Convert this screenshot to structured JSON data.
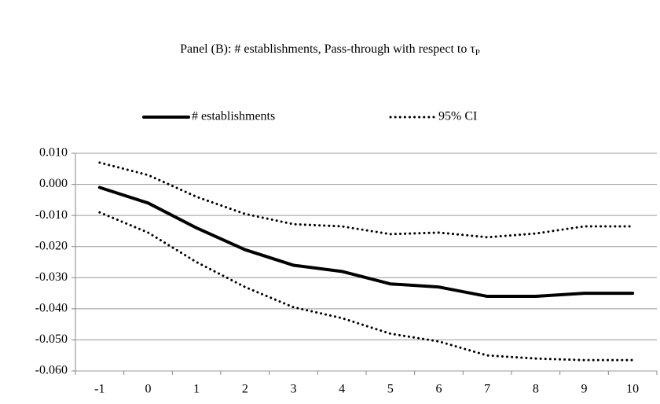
{
  "chart_data": {
    "type": "line",
    "title": "Panel (B): # establishments, Pass-through with respect to τ",
    "title_subscript": "P",
    "categories": [
      "-1",
      "0",
      "1",
      "2",
      "3",
      "4",
      "5",
      "6",
      "7",
      "8",
      "9",
      "10"
    ],
    "series": [
      {
        "name": "# establishments",
        "color": "#000000",
        "style": "solid",
        "values": [
          -0.001,
          -0.006,
          -0.014,
          -0.021,
          -0.026,
          -0.028,
          -0.032,
          -0.033,
          -0.036,
          -0.036,
          -0.035,
          -0.035
        ]
      },
      {
        "name": "95% CI",
        "color": "#000000",
        "style": "dotted",
        "upper": [
          0.007,
          0.003,
          -0.004,
          -0.0095,
          -0.0128,
          -0.0135,
          -0.016,
          -0.0155,
          -0.017,
          -0.0158,
          -0.0135,
          -0.0135
        ],
        "lower": [
          -0.009,
          -0.0155,
          -0.025,
          -0.033,
          -0.0395,
          -0.043,
          -0.048,
          -0.0505,
          -0.055,
          -0.056,
          -0.0565,
          -0.0565
        ]
      }
    ],
    "ylim": [
      -0.06,
      0.01
    ],
    "yticks": [
      {
        "value": 0.01,
        "label": "0.010"
      },
      {
        "value": 0,
        "label": "0.000"
      },
      {
        "value": -0.01,
        "label": "-0.010"
      },
      {
        "value": -0.02,
        "label": "-0.020"
      },
      {
        "value": -0.03,
        "label": "-0.030"
      },
      {
        "value": -0.04,
        "label": "-0.040"
      },
      {
        "value": -0.05,
        "label": "-0.050"
      },
      {
        "value": -0.06,
        "label": "-0.060"
      }
    ],
    "grid": true,
    "legend": "top"
  }
}
